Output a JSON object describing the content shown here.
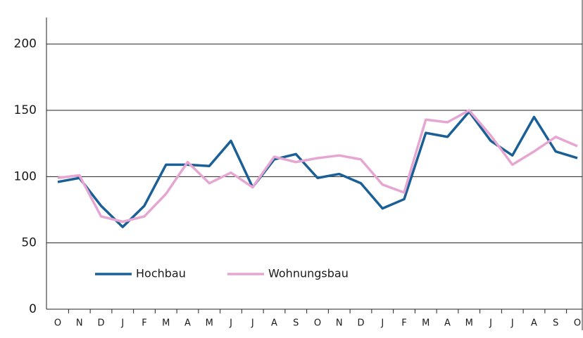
{
  "chart_data": {
    "type": "line",
    "categories": [
      "O",
      "N",
      "D",
      "J",
      "F",
      "M",
      "A",
      "M",
      "J",
      "J",
      "A",
      "S",
      "O",
      "N",
      "D",
      "J",
      "F",
      "M",
      "A",
      "M",
      "J",
      "J",
      "A",
      "S",
      "O"
    ],
    "series": [
      {
        "name": "Hochbau",
        "color": "#1a5f96",
        "values": [
          96,
          99,
          78,
          62,
          78,
          109,
          109,
          108,
          127,
          92,
          113,
          117,
          99,
          102,
          95,
          76,
          83,
          133,
          130,
          149,
          127,
          116,
          145,
          119,
          114
        ]
      },
      {
        "name": "Wohnungsbau",
        "color": "#e6a6d2",
        "values": [
          99,
          101,
          70,
          66,
          70,
          87,
          111,
          95,
          103,
          92,
          115,
          111,
          114,
          116,
          113,
          94,
          88,
          143,
          141,
          150,
          131,
          109,
          119,
          130,
          123
        ]
      }
    ],
    "ylim": [
      0,
      220
    ],
    "yticks": [
      0,
      50,
      100,
      150,
      200
    ],
    "grid": true
  }
}
